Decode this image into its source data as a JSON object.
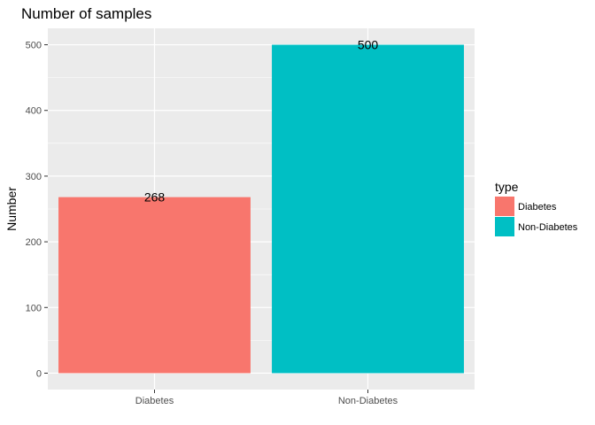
{
  "chart_data": {
    "type": "bar",
    "title": "Number of samples",
    "xlabel": "",
    "ylabel": "Number",
    "categories": [
      "Diabetes",
      "Non-Diabetes"
    ],
    "values": [
      268,
      500
    ],
    "data_labels": [
      "268",
      "500"
    ],
    "ylim": [
      -25,
      525
    ],
    "yticks": [
      0,
      100,
      200,
      300,
      400,
      500
    ],
    "grid": true,
    "legend": {
      "title": "type",
      "placement": "right",
      "entries": [
        "Diabetes",
        "Non-Diabetes"
      ]
    },
    "colors": [
      "#F8766D",
      "#00BFC4"
    ],
    "panel_background": "#EBEBEB",
    "grid_color": "#FFFFFF"
  }
}
